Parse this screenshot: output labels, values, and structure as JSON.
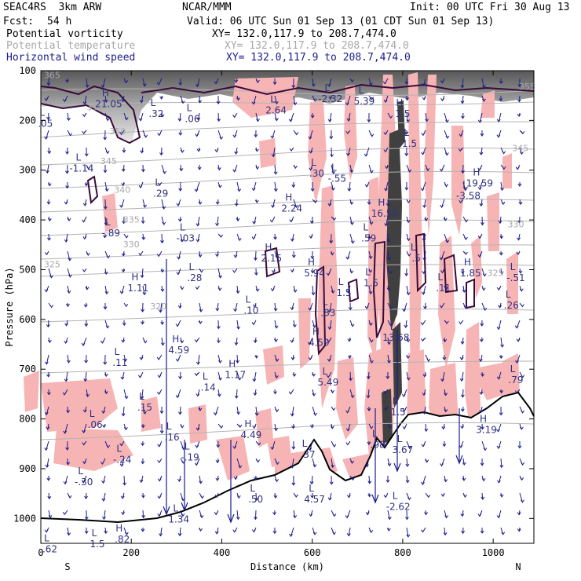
{
  "header": {
    "model": "SEAC4RS  3km ARW",
    "org": "NCAR/MMM",
    "init": "Init: 00 UTC Fri 30 Aug 13",
    "fcst_label": "Fcst:",
    "fcst_value": "54 h",
    "valid": "Valid: 06 UTC Sun 01 Sep 13 (01 CDT Sun 01 Sep 13)"
  },
  "legend": [
    {
      "name": "Potential vorticity",
      "xy": "XY= 132.0,117.9 to 208.7,474.0",
      "color": "#000000"
    },
    {
      "name": "Potential temperature",
      "xy": "XY= 132.0,117.9 to 208.7,474.0",
      "color": "#a8a8a8"
    },
    {
      "name": "Horizontal wind speed",
      "xy": "XY= 132.0,117.9 to 208.7,474.0",
      "color": "#1c1c8c"
    }
  ],
  "chart_data": {
    "type": "contour-cross-section",
    "xlabel": "Distance (km)",
    "ylabel": "Pressure (hPa)",
    "xlim": [
      0,
      1090
    ],
    "ylim": [
      1050,
      100
    ],
    "x_ticks": [
      0,
      200,
      400,
      600,
      800,
      1000
    ],
    "y_ticks": [
      100,
      200,
      300,
      400,
      500,
      600,
      700,
      800,
      900,
      1000
    ],
    "x_end_labels": {
      "left": "S",
      "right": "N"
    },
    "theta_contours": [
      {
        "label": "365",
        "x": 25,
        "p": 115
      },
      {
        "label": "355",
        "x": 120,
        "p": 180
      },
      {
        "label": "355",
        "x": 1075,
        "p": 138
      },
      {
        "label": "350",
        "x": 170,
        "p": 228
      },
      {
        "label": "345",
        "x": 150,
        "p": 288
      },
      {
        "label": "345",
        "x": 1060,
        "p": 262
      },
      {
        "label": "340",
        "x": 180,
        "p": 345
      },
      {
        "label": "335",
        "x": 200,
        "p": 405
      },
      {
        "label": "330",
        "x": 200,
        "p": 455
      },
      {
        "label": "330",
        "x": 1050,
        "p": 415
      },
      {
        "label": "325",
        "x": 25,
        "p": 495
      },
      {
        "label": "325",
        "x": 1005,
        "p": 513
      },
      {
        "label": "320",
        "x": 260,
        "p": 580
      }
    ],
    "pv_extrema": [
      {
        "type": "H",
        "value": "21.05",
        "x": 150,
        "p": 170
      },
      {
        "type": "L",
        "value": ".32",
        "x": 255,
        "p": 190
      },
      {
        "type": "L",
        "value": ".05",
        "x": 10,
        "p": 210
      },
      {
        "type": "L",
        "value": ".06",
        "x": 335,
        "p": 200
      },
      {
        "type": "L",
        "value": "2.64",
        "x": 520,
        "p": 183
      },
      {
        "type": "L",
        "value": "-2.32",
        "x": 640,
        "p": 160
      },
      {
        "type": "L",
        "value": "5.39",
        "x": 715,
        "p": 165
      },
      {
        "type": "H",
        "value": "1.5",
        "x": 800,
        "p": 190
      },
      {
        "type": "L",
        "value": "1.5",
        "x": 815,
        "p": 250
      },
      {
        "type": "L",
        "value": "-1.14",
        "x": 90,
        "p": 300
      },
      {
        "type": "L",
        "value": ".29",
        "x": 265,
        "p": 350
      },
      {
        "type": "L",
        "value": ".30",
        "x": 610,
        "p": 310
      },
      {
        "type": "L",
        "value": "-.55",
        "x": 655,
        "p": 320
      },
      {
        "type": "H",
        "value": "2.24",
        "x": 555,
        "p": 380
      },
      {
        "type": "H",
        "value": "16.56",
        "x": 760,
        "p": 390
      },
      {
        "type": "H",
        "value": "19.59",
        "x": 970,
        "p": 330
      },
      {
        "type": "L",
        "value": "-3.58",
        "x": 945,
        "p": 355
      },
      {
        "type": "L",
        "value": "-.89",
        "x": 155,
        "p": 430
      },
      {
        "type": "L",
        "value": "-.03",
        "x": 320,
        "p": 440
      },
      {
        "type": "L",
        "value": ".59",
        "x": 725,
        "p": 440
      },
      {
        "type": "L",
        "value": ".5",
        "x": 830,
        "p": 480
      },
      {
        "type": "H",
        "value": "2.15",
        "x": 510,
        "p": 480
      },
      {
        "type": "H",
        "value": "5.94",
        "x": 605,
        "p": 510
      },
      {
        "type": "H",
        "value": "1.85",
        "x": 950,
        "p": 510
      },
      {
        "type": "L",
        "value": ".28",
        "x": 340,
        "p": 520
      },
      {
        "type": "L",
        "value": "-.51",
        "x": 1050,
        "p": 520
      },
      {
        "type": "H",
        "value": "1.11",
        "x": 215,
        "p": 540
      },
      {
        "type": "L",
        "value": "1.5",
        "x": 730,
        "p": 530
      },
      {
        "type": "L",
        "value": ".11",
        "x": 890,
        "p": 540
      },
      {
        "type": "L",
        "value": "1.5",
        "x": 670,
        "p": 550
      },
      {
        "type": "L",
        "value": ".26",
        "x": 1040,
        "p": 575
      },
      {
        "type": "L",
        "value": ".10",
        "x": 465,
        "p": 585
      },
      {
        "type": "L",
        "value": ".83",
        "x": 635,
        "p": 590
      },
      {
        "type": "L",
        "value": "13.68",
        "x": 785,
        "p": 640
      },
      {
        "type": "H",
        "value": "4.59",
        "x": 305,
        "p": 665
      },
      {
        "type": "H",
        "value": "4.59",
        "x": 615,
        "p": 650
      },
      {
        "type": "L",
        "value": ".11",
        "x": 175,
        "p": 690
      },
      {
        "type": "H",
        "value": "1.17",
        "x": 430,
        "p": 715
      },
      {
        "type": "L",
        "value": ".14",
        "x": 370,
        "p": 740
      },
      {
        "type": "L",
        "value": ".79",
        "x": 1050,
        "p": 725
      },
      {
        "type": "L",
        "value": "5.49",
        "x": 635,
        "p": 730
      },
      {
        "type": "L",
        "value": ".15",
        "x": 230,
        "p": 780
      },
      {
        "type": "L",
        "value": ".06",
        "x": 120,
        "p": 815
      },
      {
        "type": "L",
        "value": ".16",
        "x": 290,
        "p": 840
      },
      {
        "type": "H",
        "value": "4.49",
        "x": 465,
        "p": 835
      },
      {
        "type": "L",
        "value": "1.5",
        "x": 790,
        "p": 790
      },
      {
        "type": "H",
        "value": "3.19",
        "x": 985,
        "p": 825
      },
      {
        "type": "L",
        "value": "-.24",
        "x": 180,
        "p": 885
      },
      {
        "type": "L",
        "value": "-.19",
        "x": 330,
        "p": 880
      },
      {
        "type": "L",
        "value": ".37",
        "x": 590,
        "p": 875
      },
      {
        "type": "L",
        "value": ".98",
        "x": 745,
        "p": 855
      },
      {
        "type": "L",
        "value": "3.67",
        "x": 800,
        "p": 865
      },
      {
        "type": "L",
        "value": "-.30",
        "x": 95,
        "p": 930
      },
      {
        "type": "L",
        "value": "4.57",
        "x": 605,
        "p": 965
      },
      {
        "type": "L",
        "value": ".50",
        "x": 475,
        "p": 965
      },
      {
        "type": "L",
        "value": "-2.62",
        "x": 790,
        "p": 980
      },
      {
        "type": "L",
        "value": "1.34",
        "x": 305,
        "p": 1005
      },
      {
        "type": "H",
        "value": ".82",
        "x": 180,
        "p": 1045
      },
      {
        "type": "L",
        "value": "1.5",
        "x": 125,
        "p": 1055
      },
      {
        "type": "L",
        "value": ".62",
        "x": 20,
        "p": 1065
      }
    ]
  }
}
